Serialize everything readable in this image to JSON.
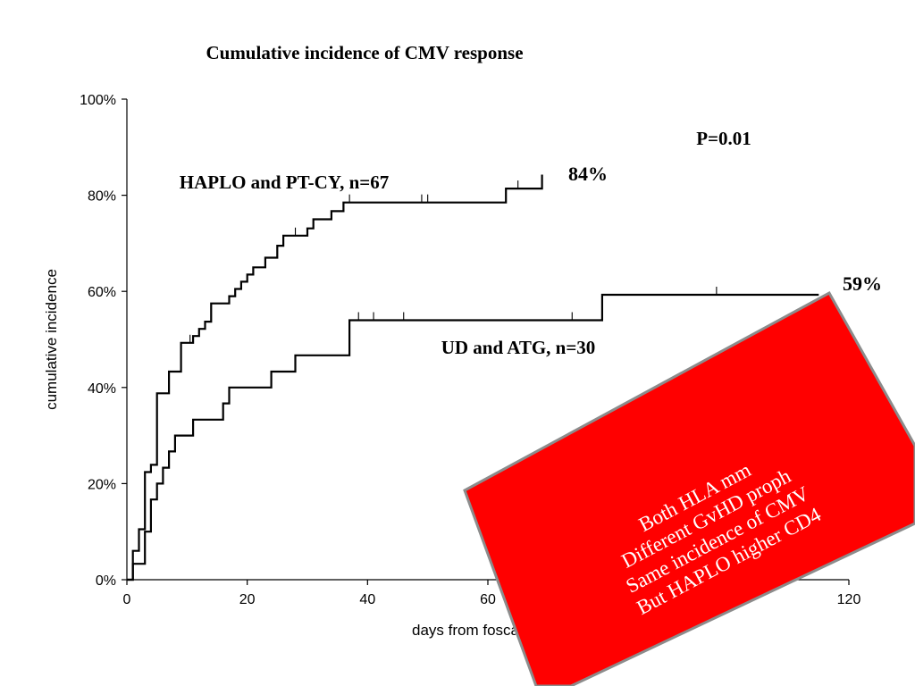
{
  "chart_data": {
    "type": "line",
    "step": true,
    "title": "Cumulative incidence of CMV response",
    "xlabel": "days from foscar",
    "ylabel": "cumulative incidence",
    "xlim": [
      0,
      120
    ],
    "ylim": [
      0,
      100
    ],
    "x_ticks": [
      "0",
      "20",
      "40",
      "60",
      "120"
    ],
    "x_tick_values": [
      0,
      20,
      40,
      60,
      120
    ],
    "y_ticks": [
      "0%",
      "20%",
      "40%",
      "60%",
      "80%",
      "100%"
    ],
    "y_tick_values": [
      0,
      20,
      40,
      60,
      80,
      100
    ],
    "grid": false,
    "pvalue": "P=0.01",
    "series": [
      {
        "name": "HAPLO and PT-CY, n=67",
        "end_label": "84%",
        "points": [
          [
            0,
            0
          ],
          [
            1,
            0
          ],
          [
            1,
            6
          ],
          [
            2,
            6
          ],
          [
            2,
            10.5
          ],
          [
            3,
            10.5
          ],
          [
            3,
            22.4
          ],
          [
            4,
            22.4
          ],
          [
            4,
            23.9
          ],
          [
            5,
            23.9
          ],
          [
            5,
            38.8
          ],
          [
            7,
            38.8
          ],
          [
            7,
            43.3
          ],
          [
            9,
            43.3
          ],
          [
            9,
            49.3
          ],
          [
            11,
            49.3
          ],
          [
            11,
            50.7
          ],
          [
            12,
            50.7
          ],
          [
            12,
            52.2
          ],
          [
            13,
            52.2
          ],
          [
            13,
            53.7
          ],
          [
            14,
            53.7
          ],
          [
            14,
            57.5
          ],
          [
            17,
            57.5
          ],
          [
            17,
            59
          ],
          [
            18,
            59
          ],
          [
            18,
            60.5
          ],
          [
            19,
            60.5
          ],
          [
            19,
            62
          ],
          [
            20,
            62
          ],
          [
            20,
            63.5
          ],
          [
            21,
            63.5
          ],
          [
            21,
            65
          ],
          [
            23,
            65
          ],
          [
            23,
            67
          ],
          [
            25,
            67
          ],
          [
            25,
            69.5
          ],
          [
            26,
            69.5
          ],
          [
            26,
            71.6
          ],
          [
            30,
            71.6
          ],
          [
            30,
            73.1
          ],
          [
            31,
            73.1
          ],
          [
            31,
            75
          ],
          [
            34,
            75
          ],
          [
            34,
            76.7
          ],
          [
            36,
            76.7
          ],
          [
            36,
            78.5
          ],
          [
            63,
            78.5
          ],
          [
            63,
            81.4
          ],
          [
            69,
            81.4
          ],
          [
            69,
            84.3
          ]
        ],
        "censor_x": [
          10.5,
          28,
          37,
          49,
          50,
          65
        ]
      },
      {
        "name": "UD and ATG, n=30",
        "end_label": "59%",
        "points": [
          [
            0,
            0
          ],
          [
            1,
            0
          ],
          [
            1,
            3.3
          ],
          [
            3,
            3.3
          ],
          [
            3,
            10
          ],
          [
            4,
            10
          ],
          [
            4,
            16.7
          ],
          [
            5,
            16.7
          ],
          [
            5,
            20
          ],
          [
            6,
            20
          ],
          [
            6,
            23.3
          ],
          [
            7,
            23.3
          ],
          [
            7,
            26.7
          ],
          [
            8,
            26.7
          ],
          [
            8,
            30
          ],
          [
            11,
            30
          ],
          [
            11,
            33.3
          ],
          [
            16,
            33.3
          ],
          [
            16,
            36.7
          ],
          [
            17,
            36.7
          ],
          [
            17,
            40
          ],
          [
            24,
            40
          ],
          [
            24,
            43.3
          ],
          [
            28,
            43.3
          ],
          [
            28,
            46.7
          ],
          [
            37,
            46.7
          ],
          [
            37,
            54
          ],
          [
            79,
            54
          ],
          [
            79,
            59.3
          ],
          [
            115,
            59.3
          ]
        ],
        "censor_x": [
          38.5,
          41,
          46,
          74,
          98
        ]
      }
    ]
  },
  "annotation_box": {
    "lines": [
      "Both HLA mm",
      "Different GvHD proph",
      "Same incidence of CMV",
      "But HAPLO higher CD4"
    ],
    "fill_color": "#ff0000",
    "border_color": "#8c8c8c",
    "text_color": "#ffffff"
  }
}
